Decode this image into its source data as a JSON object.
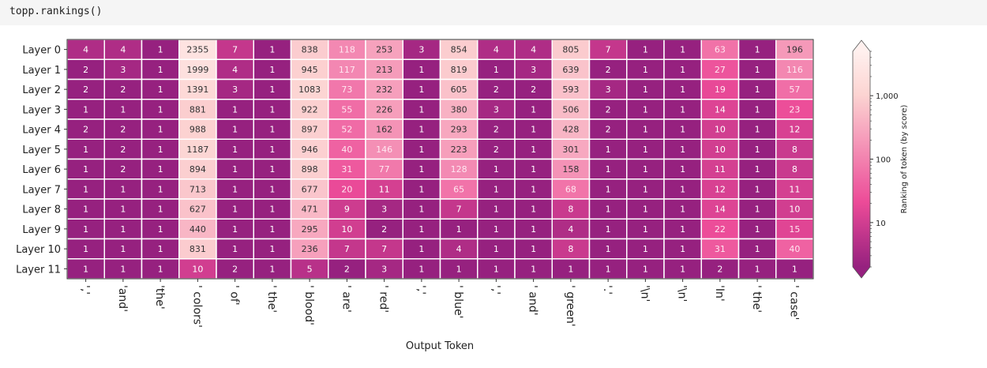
{
  "code": {
    "text": "topp.rankings()"
  },
  "chart_data": {
    "type": "heatmap",
    "title": "",
    "xlabel": "Output Token",
    "ylabel": "",
    "rows": [
      "Layer 0",
      "Layer 1",
      "Layer 2",
      "Layer 3",
      "Layer 4",
      "Layer 5",
      "Layer 6",
      "Layer 7",
      "Layer 8",
      "Layer 9",
      "Layer 10",
      "Layer 11"
    ],
    "columns": [
      "','",
      "'and'",
      "'the'",
      "' colors'",
      "' of'",
      "' the'",
      "' blood'",
      "' are'",
      "' red'",
      "','",
      "' blue'",
      "','",
      "' and'",
      "' green'",
      "'.'",
      "'\\n'",
      "'\\n'",
      "'In'",
      "' the'",
      "' case'"
    ],
    "values": [
      [
        4,
        4,
        1,
        2355,
        7,
        1,
        838,
        118,
        253,
        3,
        854,
        4,
        4,
        805,
        7,
        1,
        1,
        63,
        1,
        196
      ],
      [
        2,
        3,
        1,
        1999,
        4,
        1,
        945,
        117,
        213,
        1,
        819,
        1,
        3,
        639,
        2,
        1,
        1,
        27,
        1,
        116
      ],
      [
        2,
        2,
        1,
        1391,
        3,
        1,
        1083,
        73,
        232,
        1,
        605,
        2,
        2,
        593,
        3,
        1,
        1,
        19,
        1,
        57
      ],
      [
        1,
        1,
        1,
        881,
        1,
        1,
        922,
        55,
        226,
        1,
        380,
        3,
        1,
        506,
        2,
        1,
        1,
        14,
        1,
        23
      ],
      [
        2,
        2,
        1,
        988,
        1,
        1,
        897,
        52,
        162,
        1,
        293,
        2,
        1,
        428,
        2,
        1,
        1,
        10,
        1,
        12
      ],
      [
        1,
        2,
        1,
        1187,
        1,
        1,
        946,
        40,
        146,
        1,
        223,
        2,
        1,
        301,
        1,
        1,
        1,
        10,
        1,
        8
      ],
      [
        1,
        2,
        1,
        894,
        1,
        1,
        898,
        31,
        77,
        1,
        128,
        1,
        1,
        158,
        1,
        1,
        1,
        11,
        1,
        8
      ],
      [
        1,
        1,
        1,
        713,
        1,
        1,
        677,
        20,
        11,
        1,
        65,
        1,
        1,
        68,
        1,
        1,
        1,
        12,
        1,
        11
      ],
      [
        1,
        1,
        1,
        627,
        1,
        1,
        471,
        9,
        3,
        1,
        7,
        1,
        1,
        8,
        1,
        1,
        1,
        14,
        1,
        10
      ],
      [
        1,
        1,
        1,
        440,
        1,
        1,
        295,
        10,
        2,
        1,
        1,
        1,
        1,
        4,
        1,
        1,
        1,
        22,
        1,
        15
      ],
      [
        1,
        1,
        1,
        831,
        1,
        1,
        236,
        7,
        7,
        1,
        4,
        1,
        1,
        8,
        1,
        1,
        1,
        31,
        1,
        40
      ],
      [
        1,
        1,
        1,
        10,
        2,
        1,
        5,
        2,
        3,
        1,
        1,
        1,
        1,
        1,
        1,
        1,
        1,
        2,
        1,
        1
      ]
    ],
    "scale": "log",
    "colorbar": {
      "label": "Ranking of token (by score)",
      "ticks": [
        "1,000",
        "100",
        "10"
      ],
      "tick_values": [
        1000,
        100,
        10
      ],
      "range": [
        2,
        5000
      ],
      "extend": "both"
    },
    "colors": {
      "low": "#96217f",
      "mid": "#ec4b98",
      "high": "#fcd4d2",
      "top": "#fff0ee",
      "grid": "#ffffff"
    }
  }
}
